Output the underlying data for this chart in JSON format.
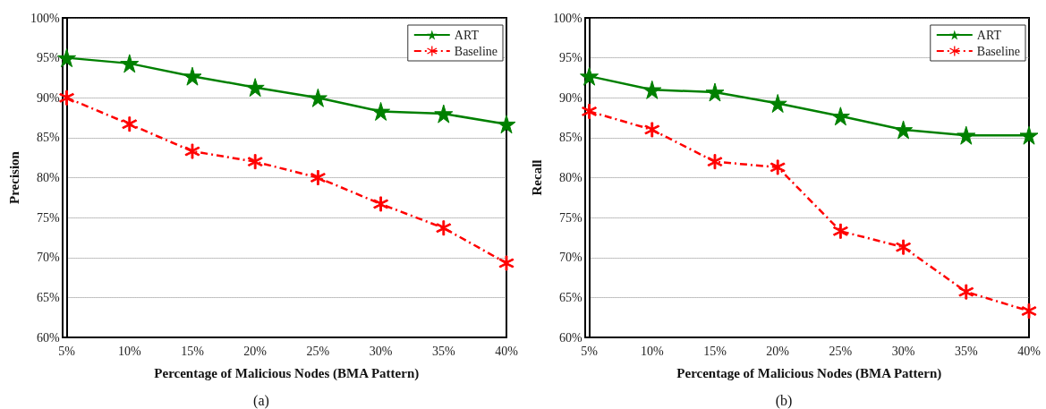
{
  "chart_data": [
    {
      "type": "line",
      "xlabel": "Percentage of Malicious Nodes (BMA Pattern)",
      "ylabel": "Precision",
      "annotations": [
        "(a)"
      ],
      "categories": [
        "5%",
        "10%",
        "15%",
        "20%",
        "25%",
        "30%",
        "35%",
        "40%"
      ],
      "series": [
        {
          "name": "ART",
          "color": "#008000",
          "marker": "star",
          "line_style": "solid",
          "values": [
            95,
            94.3,
            92.7,
            91.3,
            90,
            88.3,
            88,
            86.7
          ]
        },
        {
          "name": "Baseline",
          "color": "#ff0000",
          "marker": "cross",
          "line_style": "dashed",
          "values": [
            90,
            86.7,
            83.3,
            82,
            80,
            76.7,
            73.7,
            69.3
          ]
        }
      ],
      "ylim": [
        60,
        100
      ],
      "yticks": [
        {
          "value": 60,
          "label": "60%"
        },
        {
          "value": 65,
          "label": "65%"
        },
        {
          "value": 70,
          "label": "70%"
        },
        {
          "value": 75,
          "label": "75%"
        },
        {
          "value": 80,
          "label": "80%"
        },
        {
          "value": 85,
          "label": "85%"
        },
        {
          "value": 90,
          "label": "90%"
        },
        {
          "value": 95,
          "label": "95%"
        },
        {
          "value": 100,
          "label": "100%"
        }
      ],
      "grid": "y",
      "legend": "top right"
    },
    {
      "type": "line",
      "xlabel": "Percentage of Malicious Nodes (BMA Pattern)",
      "ylabel": "Recall",
      "annotations": [
        "(b)"
      ],
      "categories": [
        "5%",
        "10%",
        "15%",
        "20%",
        "25%",
        "30%",
        "35%",
        "40%"
      ],
      "series": [
        {
          "name": "ART",
          "color": "#008000",
          "marker": "star",
          "line_style": "solid",
          "values": [
            92.7,
            91,
            90.7,
            89.3,
            87.7,
            86,
            85.3,
            85.3
          ]
        },
        {
          "name": "Baseline",
          "color": "#ff0000",
          "marker": "cross",
          "line_style": "dashed",
          "values": [
            88.3,
            86,
            82,
            81.3,
            73.3,
            71.3,
            65.7,
            63.3
          ]
        }
      ],
      "ylim": [
        60,
        100
      ],
      "yticks": [
        {
          "value": 60,
          "label": "60%"
        },
        {
          "value": 65,
          "label": "65%"
        },
        {
          "value": 70,
          "label": "70%"
        },
        {
          "value": 75,
          "label": "75%"
        },
        {
          "value": 80,
          "label": "80%"
        },
        {
          "value": 85,
          "label": "85%"
        },
        {
          "value": 90,
          "label": "90%"
        },
        {
          "value": 95,
          "label": "95%"
        },
        {
          "value": 100,
          "label": "100%"
        }
      ],
      "grid": "y",
      "legend": "top right"
    }
  ]
}
